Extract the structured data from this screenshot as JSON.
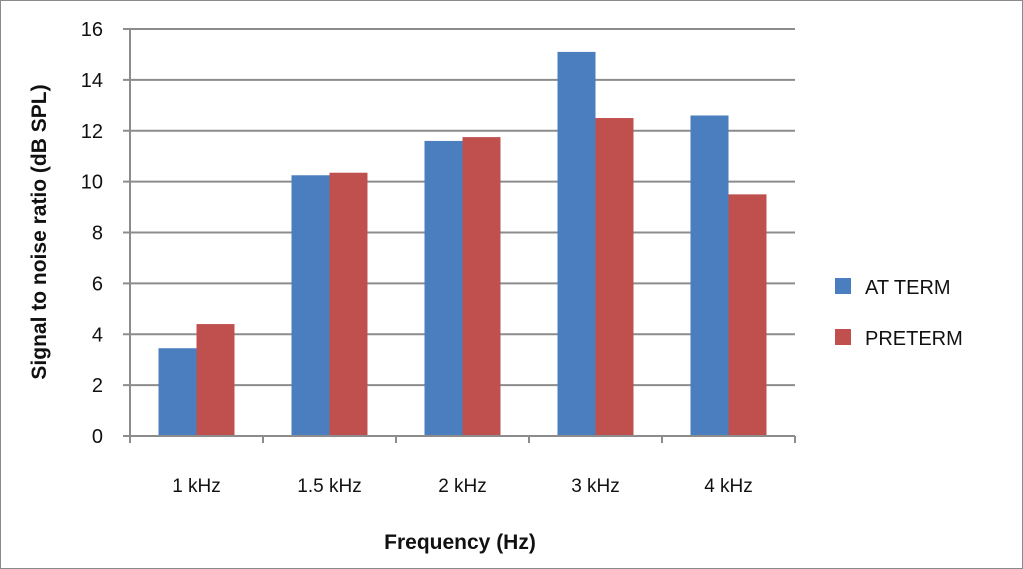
{
  "chart_data": {
    "type": "bar",
    "title": "",
    "xlabel": "Frequency (Hz)",
    "ylabel": "Signal to noise ratio (dB SPL)",
    "categories": [
      "1 kHz",
      "1.5 kHz",
      "2 kHz",
      "3 kHz",
      "4 kHz"
    ],
    "series": [
      {
        "name": "AT TERM",
        "color": "#4a7ebf",
        "values": [
          3.45,
          10.25,
          11.6,
          15.1,
          12.6
        ]
      },
      {
        "name": "PRETERM",
        "color": "#c0504d",
        "values": [
          4.4,
          10.35,
          11.75,
          12.5,
          9.5
        ]
      }
    ],
    "ylim": [
      0,
      16
    ],
    "yticks": [
      "0",
      "2",
      "4",
      "6",
      "8",
      "10",
      "12",
      "14",
      "16"
    ],
    "grid": true,
    "legend": "right"
  }
}
